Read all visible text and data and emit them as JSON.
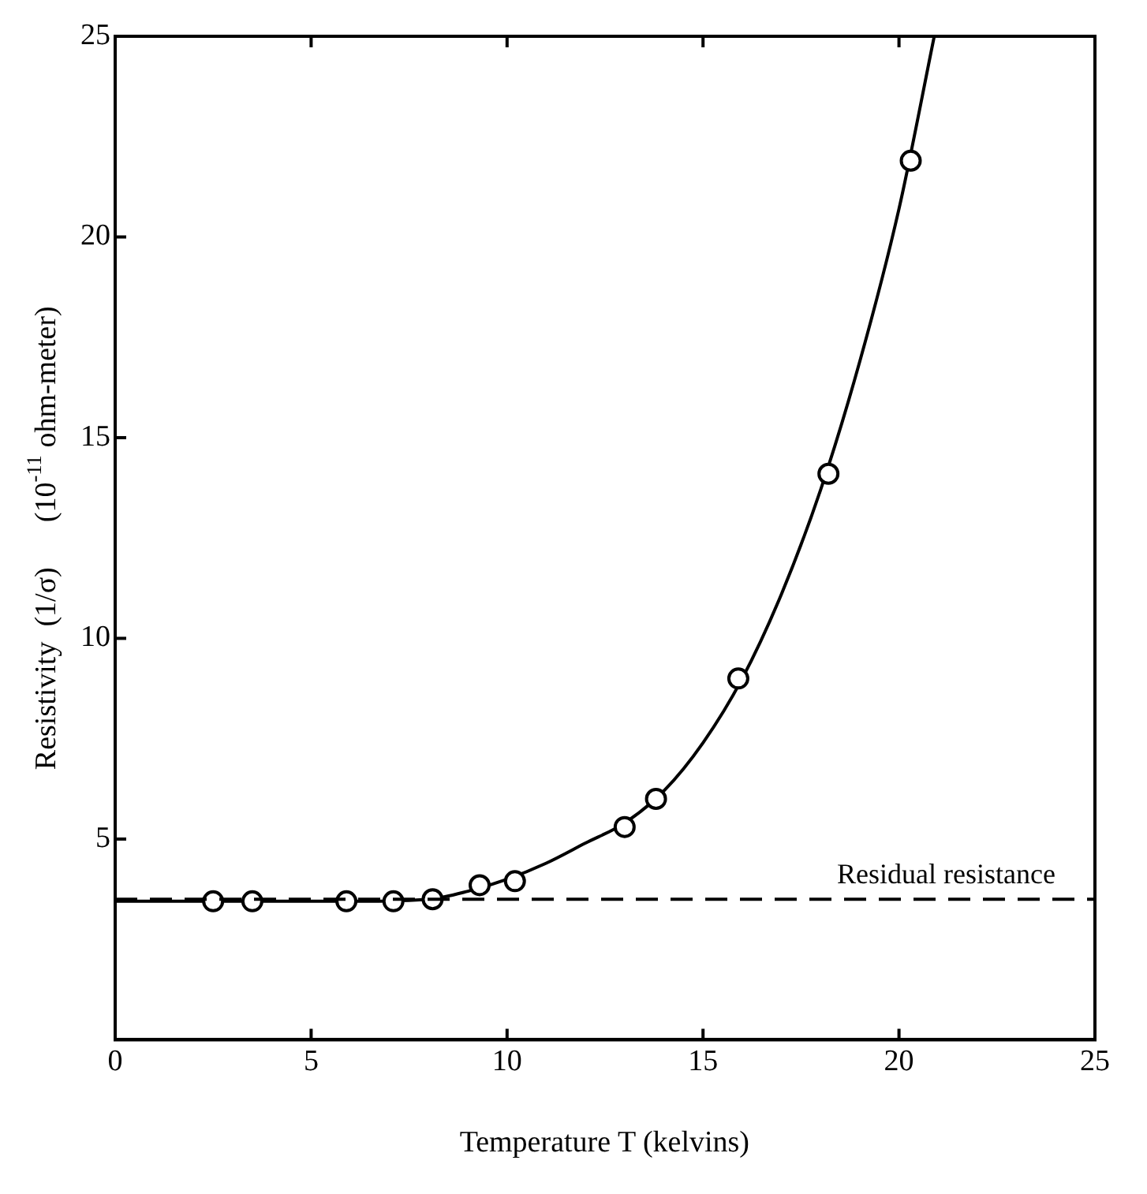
{
  "chart_data": {
    "type": "scatter",
    "xlabel": "Temperature T (kelvins)",
    "ylabel": "Resistivity  (1/σ)      (10$^{-11}$ ohm-meter)",
    "xlim": [
      0,
      25
    ],
    "ylim": [
      0,
      25
    ],
    "xticks": [
      0,
      5,
      10,
      15,
      20,
      25
    ],
    "yticks": [
      5,
      10,
      15,
      20,
      25
    ],
    "grid": false,
    "legend": false,
    "series": [
      {
        "color": "#000000",
        "marker": "circle",
        "x": [
          2.5,
          3.5,
          5.9,
          7.1,
          8.1,
          9.3,
          10.2,
          13.0,
          13.8,
          15.9,
          18.2,
          20.3
        ],
        "values": [
          3.45,
          3.45,
          3.45,
          3.45,
          3.5,
          3.85,
          3.95,
          5.3,
          6.0,
          9.0,
          14.1,
          21.9
        ]
      },
      {
        "type": "line",
        "color": "#000000",
        "marker": "none",
        "line_style": "solid",
        "x": [
          0,
          2,
          4,
          6,
          8,
          9,
          10,
          11,
          12,
          13,
          14,
          15,
          16,
          17,
          18,
          19,
          20,
          20.9
        ],
        "values": [
          3.45,
          3.45,
          3.45,
          3.45,
          3.5,
          3.7,
          4.0,
          4.4,
          4.9,
          5.4,
          6.2,
          7.4,
          9.0,
          11.1,
          13.7,
          16.9,
          20.7,
          25
        ]
      }
    ],
    "ref_lines": [
      {
        "axis": "y",
        "value": 3.5,
        "label": "Residual resistance",
        "color": "#000000",
        "line_style": "dashed"
      }
    ]
  }
}
